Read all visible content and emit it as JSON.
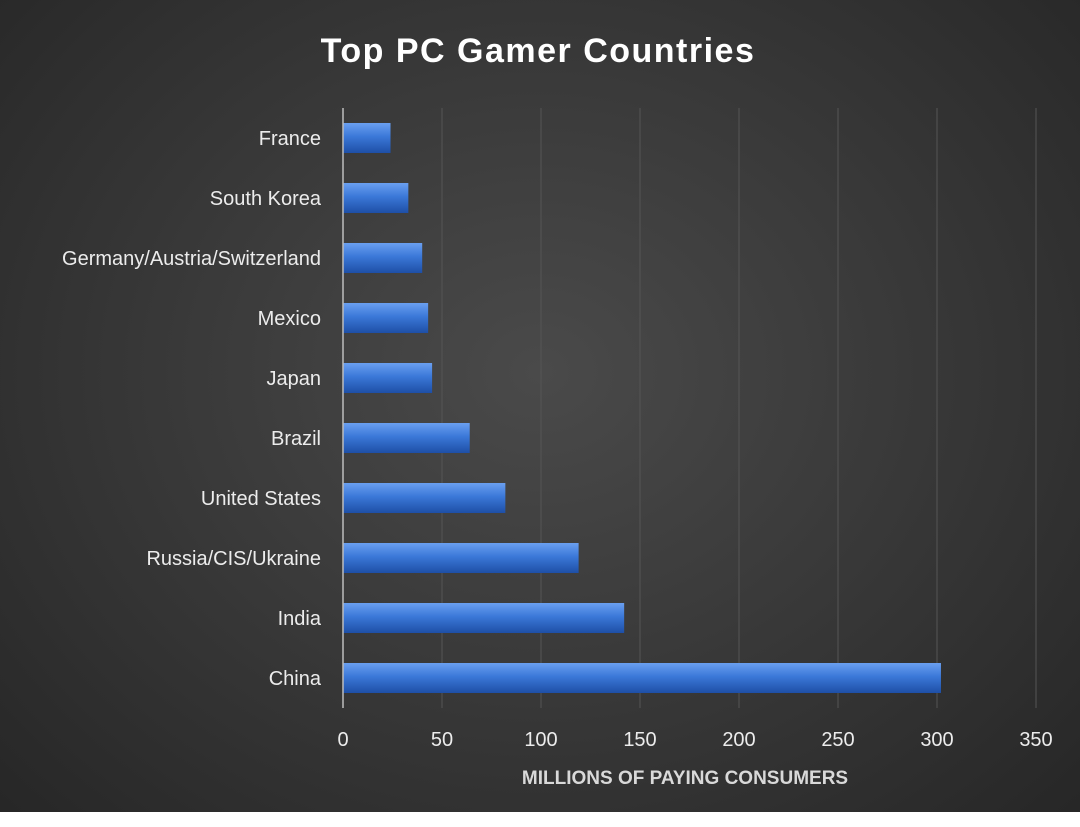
{
  "chart_data": {
    "type": "bar",
    "orientation": "horizontal",
    "title": "Top PC Gamer Countries",
    "xlabel": "MILLIONS OF PAYING CONSUMERS",
    "ylabel": "",
    "categories": [
      "France",
      "South Korea",
      "Germany/Austria/Switzerland",
      "Mexico",
      "Japan",
      "Brazil",
      "United States",
      "Russia/CIS/Ukraine",
      "India",
      "China"
    ],
    "values": [
      24,
      33,
      40,
      43,
      45,
      64,
      82,
      119,
      142,
      302
    ],
    "xlim": [
      0,
      350
    ],
    "xticks": [
      0,
      50,
      100,
      150,
      200,
      250,
      300,
      350
    ],
    "grid": "vertical",
    "legend": "none",
    "colors": {
      "bar": "#3b78d8",
      "bar_highlight": "#6a9ff0",
      "bar_shadow": "#1e4fa6",
      "text": "#ececec",
      "title": "#ffffff",
      "grid": "#555555",
      "axis": "#bdbdbd"
    }
  }
}
